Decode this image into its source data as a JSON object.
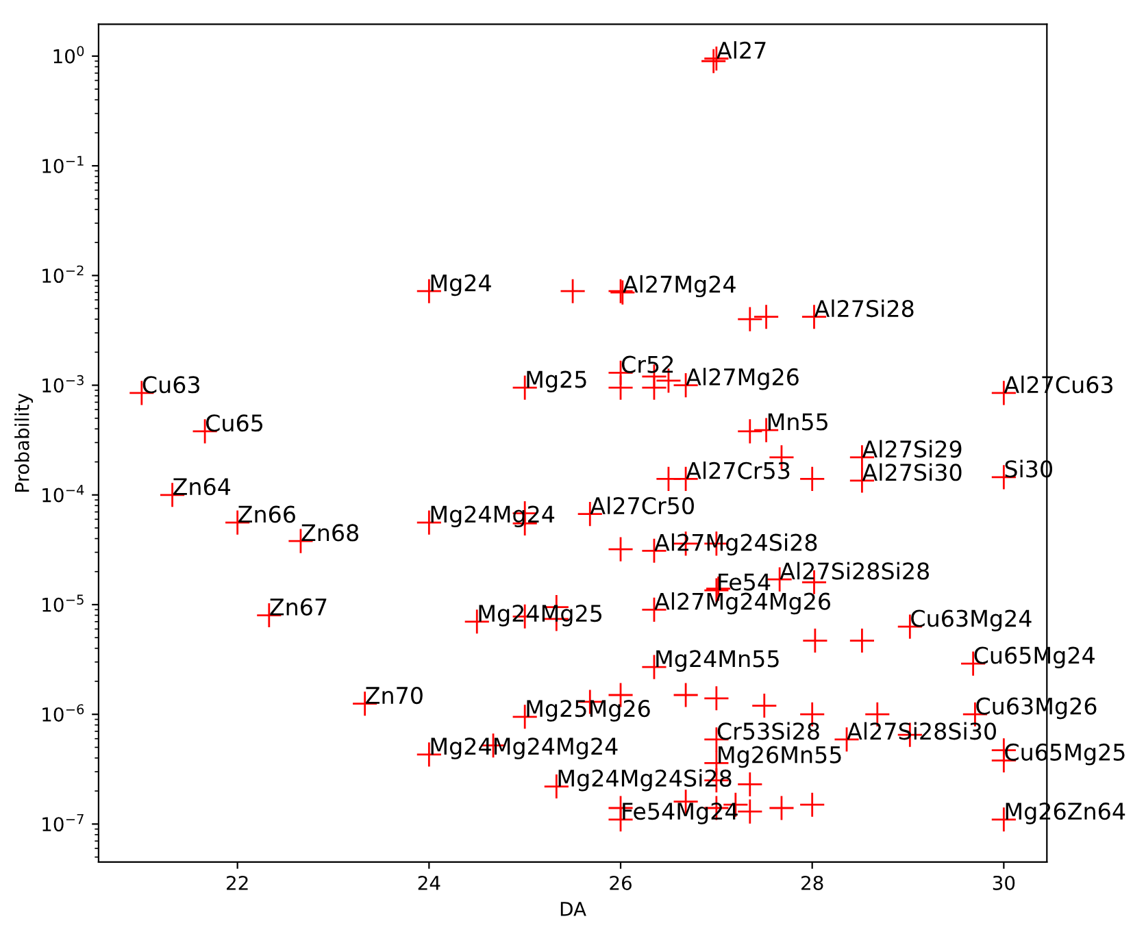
{
  "chart_data": {
    "type": "scatter",
    "xlabel": "DA",
    "ylabel": "Probability",
    "log": "y",
    "xlim": [
      20.55,
      30.45
    ],
    "ylim": [
      4.5e-08,
      1.95
    ],
    "xticks": [
      22,
      24,
      26,
      28,
      30
    ],
    "yticks": [
      {
        "value": 1e-07,
        "label": "10$^{−7}$"
      },
      {
        "value": 1e-06,
        "label": "10$^{−6}$"
      },
      {
        "value": 1e-05,
        "label": "10$^{−5}$"
      },
      {
        "value": 0.0001,
        "label": "10$^{−4}$"
      },
      {
        "value": 0.001,
        "label": "10$^{−3}$"
      },
      {
        "value": 0.01,
        "label": "10$^{−2}$"
      },
      {
        "value": 0.1,
        "label": "10$^{−1}$"
      },
      {
        "value": 1,
        "label": "10$^{0}$"
      }
    ],
    "grid": false,
    "legend": false,
    "marker": "cross",
    "series": [
      {
        "color": "#ff0000",
        "x": [
          21.0,
          21.66,
          21.32,
          22.0,
          22.66,
          22.33,
          23.33,
          24.0,
          25.0,
          27.0,
          26.97,
          25.5,
          26.0,
          26.02,
          27.35,
          27.52,
          28.02,
          26.0,
          26.35,
          26.0,
          26.35,
          26.5,
          26.68,
          30.0,
          27.35,
          27.52,
          27.68,
          28.52,
          26.5,
          26.68,
          28.0,
          28.52,
          30.0,
          24.0,
          25.0,
          25.0,
          25.68,
          26.0,
          26.35,
          27.0,
          26.68,
          27.0,
          27.02,
          27.66,
          28.02,
          25.33,
          24.5,
          25.0,
          25.33,
          26.35,
          29.02,
          28.03,
          28.52,
          26.35,
          29.68,
          27.0,
          27.0,
          28.36,
          29.02,
          29.7,
          30.0,
          30.0,
          30.0,
          25.0,
          24.67,
          24.0,
          25.33,
          26.0,
          26.0,
          26.68,
          27.0,
          27.2,
          27.35,
          27.68,
          28.0,
          27.0,
          27.35,
          25.68,
          26.0,
          26.68,
          27.0,
          27.5,
          28.0,
          28.68
        ],
        "values": [
          0.00085,
          0.00038,
          0.0001,
          5.6e-05,
          3.8e-05,
          8e-06,
          1.25e-06,
          0.0072,
          0.00095,
          0.95,
          0.9,
          0.0072,
          0.0072,
          0.007,
          0.004,
          0.0042,
          0.0042,
          0.0013,
          0.0012,
          0.00095,
          0.00095,
          0.0011,
          0.001,
          0.00085,
          0.00038,
          0.00039,
          0.00022,
          0.00022,
          0.00014,
          0.00014,
          0.00014,
          0.000135,
          0.000145,
          5.6e-05,
          6.8e-05,
          5.5e-05,
          6.7e-05,
          3.2e-05,
          3.1e-05,
          3.6e-05,
          3.6e-05,
          1.35e-05,
          1.4e-05,
          1.7e-05,
          1.6e-05,
          9.5e-06,
          7e-06,
          7.8e-06,
          7.4e-06,
          9e-06,
          6.3e-06,
          4.7e-06,
          4.7e-06,
          2.7e-06,
          2.9e-06,
          5.9e-07,
          3.6e-07,
          5.9e-07,
          6.5e-07,
          1e-06,
          4.7e-07,
          3.8e-07,
          1.1e-07,
          9.5e-07,
          5.2e-07,
          4.3e-07,
          2.2e-07,
          1.1e-07,
          1.4e-07,
          1.6e-07,
          1.4e-07,
          1.5e-07,
          1.3e-07,
          1.4e-07,
          1.5e-07,
          2.5e-07,
          2.3e-07,
          1.3e-06,
          1.5e-06,
          1.5e-06,
          1.4e-06,
          1.2e-06,
          1e-06,
          1e-06
        ],
        "value_labels": [
          "Cu63",
          "Cu65",
          "Zn64",
          "Zn66",
          "Zn68",
          "Zn67",
          "Zn70",
          "Mg24",
          "Mg25",
          "Al27",
          null,
          null,
          null,
          "Al27Mg24",
          null,
          null,
          "Al27Si28",
          "Cr52",
          null,
          null,
          null,
          null,
          "Al27Mg26",
          "Al27Cu63",
          null,
          "Mn55",
          null,
          "Al27Si29",
          null,
          "Al27Cr53",
          null,
          "Al27Si30",
          "Si30",
          "Mg24Mg24",
          null,
          null,
          "Al27Cr50",
          null,
          "Al27Mg24Si28",
          null,
          null,
          "Fe54",
          null,
          "Al27Si28Si28",
          null,
          null,
          "Mg24Mg25",
          null,
          null,
          "Al27Mg24Mg26",
          "Cu63Mg24",
          null,
          null,
          "Mg24Mn55",
          "Cu65Mg24",
          "Cr53Si28",
          "Mg26Mn55",
          "Al27Si28Si30",
          null,
          "Cu63Mg26",
          null,
          "Cu65Mg25",
          "Mg26Zn64",
          "Mg25Mg26",
          null,
          "Mg24Mg24Mg24",
          "Mg24Mg24Si28",
          "Fe54Mg24",
          null,
          null,
          null,
          null,
          null,
          null,
          null,
          null,
          null,
          null,
          null,
          null,
          null,
          null,
          null,
          null
        ]
      }
    ]
  }
}
